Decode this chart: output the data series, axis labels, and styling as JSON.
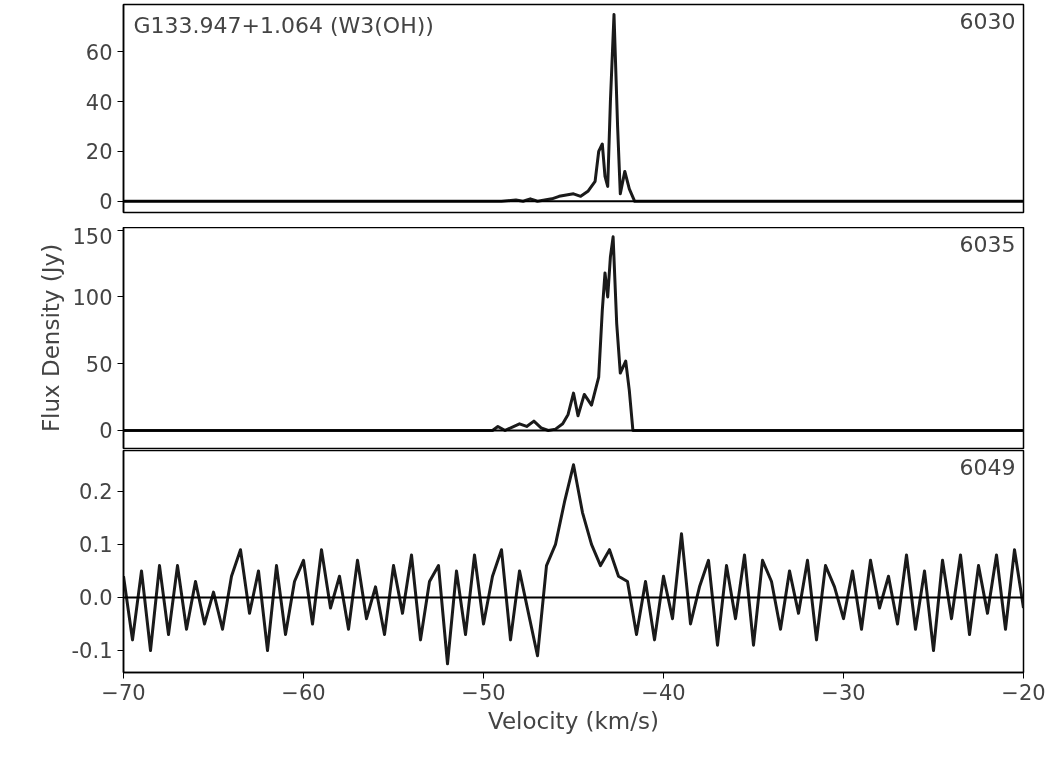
{
  "chart_data": [
    {
      "type": "line",
      "title": "G133.947+1.064 (W3(OH))",
      "annotations": [
        "6030"
      ],
      "color": "#1a1a1a",
      "x": [
        -70,
        -49,
        -48.2,
        -47.8,
        -47.4,
        -47.0,
        -46.6,
        -46.2,
        -45.8,
        -45.4,
        -45.0,
        -44.6,
        -44.2,
        -43.8,
        -43.6,
        -43.4,
        -43.25,
        -43.1,
        -42.95,
        -42.75,
        -42.55,
        -42.4,
        -42.15,
        -41.9,
        -41.6,
        -20
      ],
      "values": [
        0,
        0,
        0.5,
        0,
        1,
        0,
        0.5,
        1,
        2,
        2.5,
        3,
        2,
        4,
        8,
        20,
        23,
        10,
        6,
        40,
        75,
        30,
        3,
        12,
        5,
        0,
        0
      ],
      "xlim": [
        -70,
        -20
      ],
      "ylim": [
        -4.5,
        79
      ],
      "yticks": [
        0,
        20,
        40,
        60
      ],
      "tick_labels": "y",
      "ref_lines": [
        {
          "axis": "y",
          "value": 0
        }
      ]
    },
    {
      "type": "line",
      "ylabel": "Flux Density (Jy)",
      "annotations": [
        "6035"
      ],
      "color": "#1a1a1a",
      "x": [
        -70,
        -49.5,
        -49.2,
        -48.8,
        -48,
        -47.6,
        -47.2,
        -46.8,
        -46.4,
        -46,
        -45.6,
        -45.3,
        -45.0,
        -44.75,
        -44.4,
        -44.0,
        -43.6,
        -43.4,
        -43.25,
        -43.1,
        -42.95,
        -42.8,
        -42.6,
        -42.4,
        -42.1,
        -41.9,
        -41.7,
        -20
      ],
      "values": [
        0,
        0,
        3,
        0,
        5,
        3,
        7,
        2,
        0,
        1,
        5,
        12,
        28,
        11,
        27,
        19,
        40,
        90,
        118,
        100,
        130,
        145,
        80,
        43,
        52,
        30,
        0,
        0
      ],
      "xlim": [
        -70,
        -20
      ],
      "ylim": [
        -13.5,
        152
      ],
      "yticks": [
        0,
        50,
        100,
        150
      ],
      "tick_labels": "y",
      "ref_lines": [
        {
          "axis": "y",
          "value": 0
        }
      ]
    },
    {
      "type": "line",
      "xlabel": "Velocity (km/s)",
      "annotations": [
        "6049"
      ],
      "color": "#1a1a1a",
      "x": [
        -70,
        -69.5,
        -69,
        -68.5,
        -68,
        -67.5,
        -67,
        -66.5,
        -66,
        -65.5,
        -65,
        -64.5,
        -64,
        -63.5,
        -63,
        -62.5,
        -62,
        -61.5,
        -61,
        -60.5,
        -60,
        -59.5,
        -59,
        -58.5,
        -58,
        -57.5,
        -57,
        -56.5,
        -56,
        -55.5,
        -55,
        -54.5,
        -54,
        -53.5,
        -53,
        -52.5,
        -52,
        -51.5,
        -51,
        -50.5,
        -50,
        -49.5,
        -49,
        -48.5,
        -48,
        -47.5,
        -47,
        -46.5,
        -46,
        -45.5,
        -45,
        -44.5,
        -44,
        -43.5,
        -43,
        -42.5,
        -42,
        -41.5,
        -41,
        -40.5,
        -40,
        -39.5,
        -39,
        -38.5,
        -38,
        -37.5,
        -37,
        -36.5,
        -36,
        -35.5,
        -35,
        -34.5,
        -34,
        -33.5,
        -33,
        -32.5,
        -32,
        -31.5,
        -31,
        -30.5,
        -30,
        -29.5,
        -29,
        -28.5,
        -28,
        -27.5,
        -27,
        -26.5,
        -26,
        -25.5,
        -25,
        -24.5,
        -24,
        -23.5,
        -23,
        -22.5,
        -22,
        -21.5,
        -21,
        -20.5,
        -20
      ],
      "values": [
        0.04,
        -0.08,
        0.05,
        -0.1,
        0.06,
        -0.07,
        0.06,
        -0.06,
        0.03,
        -0.05,
        0.01,
        -0.06,
        0.04,
        0.09,
        -0.03,
        0.05,
        -0.1,
        0.06,
        -0.07,
        0.03,
        0.07,
        -0.05,
        0.09,
        -0.02,
        0.04,
        -0.06,
        0.07,
        -0.04,
        0.02,
        -0.07,
        0.06,
        -0.03,
        0.08,
        -0.08,
        0.03,
        0.06,
        -0.125,
        0.05,
        -0.07,
        0.08,
        -0.05,
        0.04,
        0.09,
        -0.08,
        0.05,
        -0.03,
        -0.11,
        0.06,
        0.1,
        0.18,
        0.25,
        0.16,
        0.1,
        0.06,
        0.09,
        0.04,
        0.03,
        -0.07,
        0.03,
        -0.08,
        0.04,
        -0.04,
        0.12,
        -0.05,
        0.02,
        0.07,
        -0.09,
        0.06,
        -0.04,
        0.08,
        -0.09,
        0.07,
        0.03,
        -0.06,
        0.05,
        -0.03,
        0.07,
        -0.08,
        0.06,
        0.02,
        -0.04,
        0.05,
        -0.06,
        0.07,
        -0.02,
        0.04,
        -0.05,
        0.08,
        -0.06,
        0.05,
        -0.1,
        0.07,
        -0.04,
        0.08,
        -0.07,
        0.06,
        -0.03,
        0.08,
        -0.06,
        0.09,
        -0.02
      ],
      "xlim": [
        -70,
        -20
      ],
      "ylim": [
        -0.1415,
        0.277
      ],
      "xticks": [
        {
          "value": -70,
          "label": "−70"
        },
        {
          "value": -60,
          "label": "−60"
        },
        {
          "value": -50,
          "label": "−50"
        },
        {
          "value": -40,
          "label": "−40"
        },
        {
          "value": -30,
          "label": "−30"
        },
        {
          "value": -20,
          "label": "−20"
        }
      ],
      "yticks": [
        {
          "value": -0.1,
          "label": "-0.1"
        },
        {
          "value": 0,
          "label": "0.0"
        },
        0.1,
        0.2
      ],
      "ref_lines": [
        {
          "axis": "y",
          "value": 0
        }
      ]
    }
  ]
}
